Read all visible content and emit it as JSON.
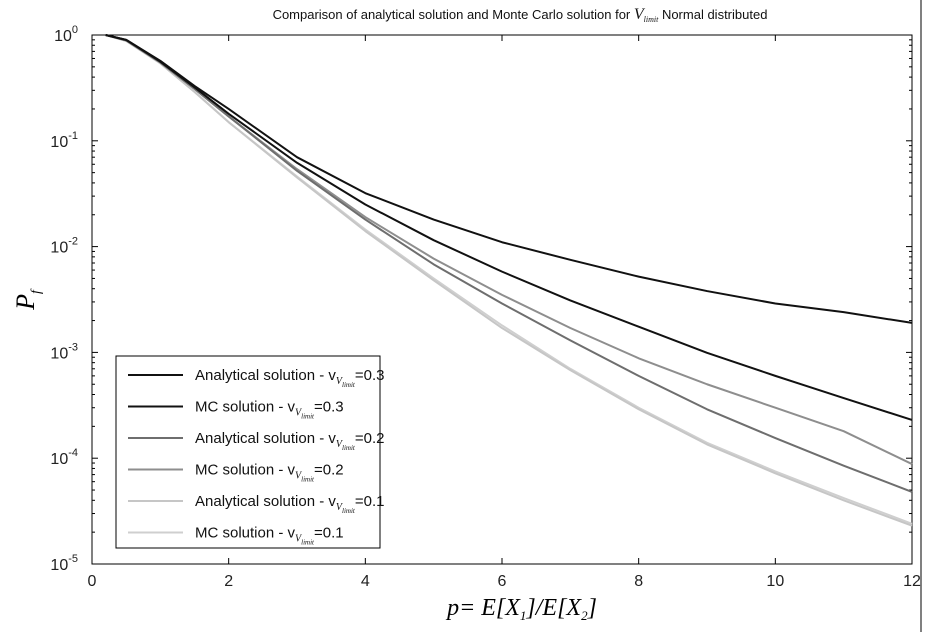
{
  "chart_data": {
    "type": "line",
    "title": {
      "prefix": "Comparison of analytical solution and Monte Carlo solution for ",
      "var": "V",
      "var_sub": "limit",
      "suffix": " Normal distributed"
    },
    "xlabel": {
      "p": "p",
      "eq": "= E[X",
      "sub1": "1",
      "mid": "]/E[X",
      "sub2": "2",
      "end": "]"
    },
    "ylabel": {
      "main": "P",
      "sub": "f"
    },
    "xlim": [
      0,
      12
    ],
    "ylim": [
      1e-05,
      1
    ],
    "yscale": "log",
    "x_ticks": [
      0,
      2,
      4,
      6,
      8,
      10,
      12
    ],
    "y_ticks": [
      {
        "exp": 0,
        "base": "10",
        "power": "0"
      },
      {
        "exp": -1,
        "base": "10",
        "power": "-1"
      },
      {
        "exp": -2,
        "base": "10",
        "power": "-2"
      },
      {
        "exp": -3,
        "base": "10",
        "power": "-3"
      },
      {
        "exp": -4,
        "base": "10",
        "power": "-4"
      },
      {
        "exp": -5,
        "base": "10",
        "power": "-5"
      }
    ],
    "grid": false,
    "legend_position": "bottom-left",
    "series": [
      {
        "name": "Analytical solution - v",
        "name_sub": "V",
        "name_subsub": "limit",
        "name_value": "=0.3",
        "color": "#111111",
        "x": [
          0.2,
          0.5,
          1,
          1.5,
          2,
          3,
          4,
          5,
          6,
          7,
          8,
          9,
          10,
          11,
          12
        ],
        "y": [
          1.0,
          0.9,
          0.56,
          0.32,
          0.18,
          0.062,
          0.025,
          0.0115,
          0.0058,
          0.0031,
          0.00175,
          0.00099,
          0.0006,
          0.00037,
          0.00023
        ]
      },
      {
        "name": "MC solution - v",
        "name_sub": "V",
        "name_subsub": "limit",
        "name_value": "=0.3",
        "color": "#111111",
        "x": [
          0.2,
          0.5,
          1,
          1.5,
          2,
          3,
          4,
          5,
          6,
          7,
          8,
          9,
          10,
          11,
          12
        ],
        "y": [
          1.0,
          0.9,
          0.57,
          0.33,
          0.2,
          0.07,
          0.032,
          0.018,
          0.011,
          0.0075,
          0.0052,
          0.0038,
          0.0029,
          0.0024,
          0.0019
        ]
      },
      {
        "name": "Analytical solution - v",
        "name_sub": "V",
        "name_subsub": "limit",
        "name_value": "=0.2",
        "color": "#6e6e6e",
        "x": [
          0.2,
          0.5,
          1,
          1.5,
          2,
          3,
          4,
          5,
          6,
          7,
          8,
          9,
          10,
          11,
          12
        ],
        "y": [
          1.0,
          0.89,
          0.55,
          0.31,
          0.17,
          0.052,
          0.018,
          0.0068,
          0.0029,
          0.0013,
          0.0006,
          0.00029,
          0.000155,
          8.5e-05,
          4.8e-05
        ]
      },
      {
        "name": "MC solution - v",
        "name_sub": "V",
        "name_subsub": "limit",
        "name_value": "=0.2",
        "color": "#8e8e8e",
        "x": [
          0.2,
          0.5,
          1,
          1.5,
          2,
          3,
          4,
          5,
          6,
          7,
          8,
          9,
          10,
          11,
          12
        ],
        "y": [
          1.0,
          0.89,
          0.55,
          0.31,
          0.17,
          0.054,
          0.019,
          0.0077,
          0.0035,
          0.0017,
          0.00088,
          0.0005,
          0.0003,
          0.00018,
          8.8e-05
        ]
      },
      {
        "name": "Analytical solution - v",
        "name_sub": "V",
        "name_subsub": "limit",
        "name_value": "=0.1",
        "color": "#c6c6c6",
        "x": [
          0.2,
          0.5,
          1,
          1.5,
          2,
          3,
          4,
          5,
          6,
          7,
          8,
          9,
          10,
          11,
          12
        ],
        "y": [
          1.0,
          0.88,
          0.54,
          0.29,
          0.15,
          0.045,
          0.014,
          0.0048,
          0.0017,
          0.00068,
          0.00029,
          0.000135,
          7.2e-05,
          4e-05,
          2.3e-05
        ]
      },
      {
        "name": "MC solution - v",
        "name_sub": "V",
        "name_subsub": "limit",
        "name_value": "=0.1",
        "color": "#cfcfcf",
        "x": [
          0.2,
          0.5,
          1,
          1.5,
          2,
          3,
          4,
          5,
          6,
          7,
          8,
          9,
          10,
          11,
          12
        ],
        "y": [
          1.0,
          0.88,
          0.54,
          0.29,
          0.15,
          0.046,
          0.0145,
          0.005,
          0.0018,
          0.0007,
          0.0003,
          0.00014,
          7.5e-05,
          4.2e-05,
          2.4e-05
        ]
      }
    ]
  }
}
